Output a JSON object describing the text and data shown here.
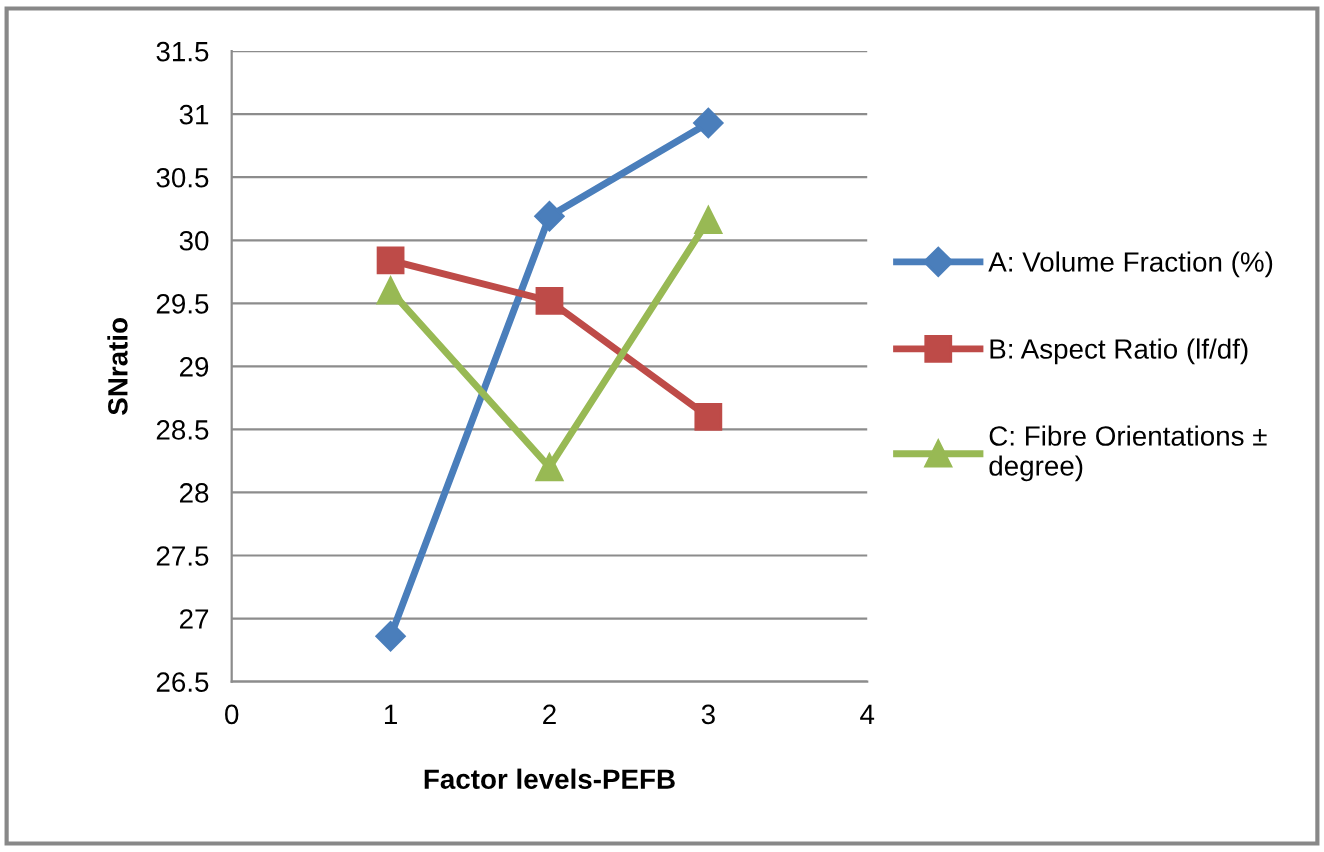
{
  "chart_data": {
    "type": "line",
    "xlabel": "Factor levels-PEFB",
    "ylabel": "SNratio",
    "x": [
      1,
      2,
      3
    ],
    "series": [
      {
        "name": "A: Volume Fraction (%)",
        "color": "#4a7ebb",
        "marker": "diamond",
        "values": [
          26.86,
          30.19,
          30.93
        ]
      },
      {
        "name": "B: Aspect Ratio (lf/df)",
        "color": "#be4b48",
        "marker": "square",
        "values": [
          29.84,
          29.52,
          28.6
        ]
      },
      {
        "name": "C: Fibre Orientations ± degree)",
        "color": "#98b954",
        "marker": "triangle",
        "values": [
          29.6,
          28.2,
          30.16
        ]
      }
    ],
    "xlim": [
      0,
      4
    ],
    "xticks": [
      0,
      1,
      2,
      3,
      4
    ],
    "ylim": [
      26.5,
      31.5
    ],
    "yticks": [
      26.5,
      27,
      27.5,
      28,
      28.5,
      29,
      29.5,
      30,
      30.5,
      31,
      31.5
    ],
    "grid": "y",
    "legend": "right",
    "line_style": "solid"
  }
}
